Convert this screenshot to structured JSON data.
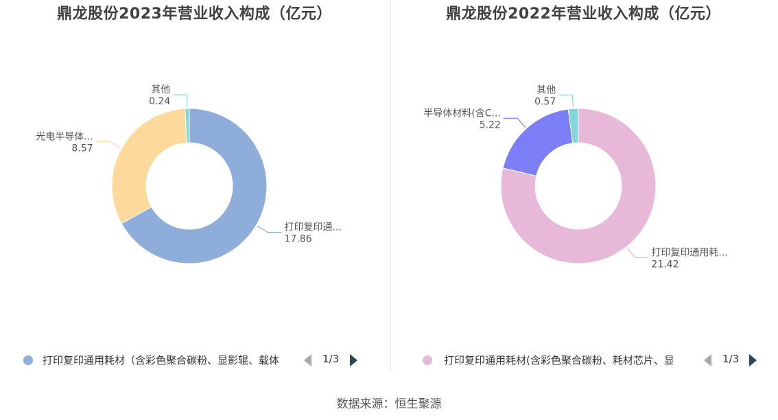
{
  "chart_data": [
    {
      "type": "pie",
      "title": "鼎龙股份2023年营业收入构成（亿元）",
      "slices": [
        {
          "label": "打印复印通...",
          "value": 17.86,
          "color": "#8eadda"
        },
        {
          "label": "光电半导体...",
          "value": 8.57,
          "color": "#fdd99c"
        },
        {
          "label": "其他",
          "value": 0.24,
          "color": "#85d5d9"
        }
      ],
      "legend": {
        "text": "打印复印通用耗材（含彩色聚合碳粉、显影辊、载体",
        "page": "1/3",
        "color": "#8eadda"
      }
    },
    {
      "type": "pie",
      "title": "鼎龙股份2022年营业收入构成（亿元）",
      "slices": [
        {
          "label": "打印复印通用耗...",
          "value": 21.42,
          "color": "#e8b8d8"
        },
        {
          "label": "半导体材料(含C...",
          "value": 5.22,
          "color": "#7b7ef5"
        },
        {
          "label": "其他",
          "value": 0.57,
          "color": "#85d5d9"
        }
      ],
      "legend": {
        "text": "打印复印通用耗材(含彩色聚合碳粉、耗材芯片、显影",
        "page": "1/3",
        "color": "#e8b8d8"
      }
    }
  ],
  "source": "数据来源：恒生聚源"
}
